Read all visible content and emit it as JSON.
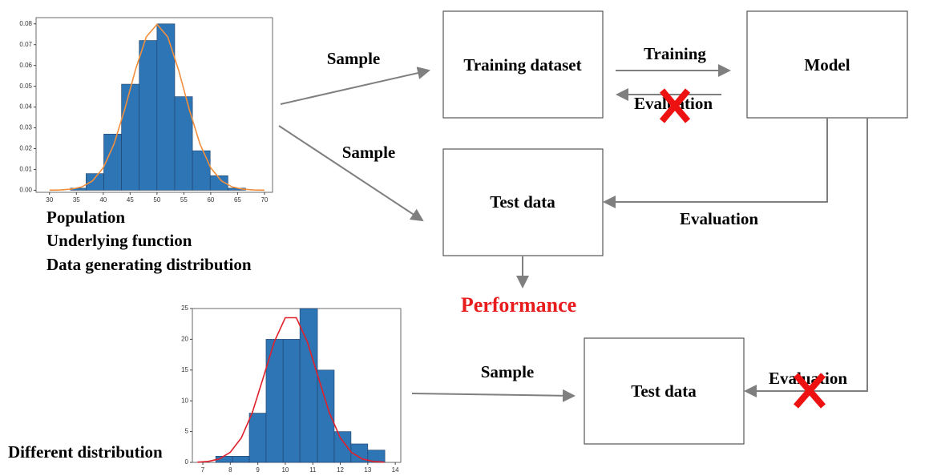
{
  "charts": [
    {
      "type": "histogram",
      "color": "#2e75b6",
      "bins": [
        33.9,
        36.8,
        40.1,
        43.4,
        46.7,
        50.0,
        53.3,
        56.6,
        59.9,
        63.2,
        66.5
      ],
      "values": [
        0.001,
        0.008,
        0.027,
        0.051,
        0.072,
        0.08,
        0.045,
        0.019,
        0.007,
        0.001
      ],
      "xlim": [
        27.5,
        71.5
      ],
      "ylim": [
        -0.001,
        0.083
      ],
      "xticks": [
        30,
        35,
        40,
        45,
        50,
        55,
        60,
        65,
        70
      ],
      "yticks": [
        {
          "value": 0,
          "label": "0.00"
        },
        {
          "value": 0.01,
          "label": "0.01"
        },
        {
          "value": 0.02,
          "label": "0.02"
        },
        {
          "value": 0.03,
          "label": "0.03"
        },
        {
          "value": 0.04,
          "label": "0.04"
        },
        {
          "value": 0.05,
          "label": "0.05"
        },
        {
          "value": 0.06,
          "label": "0.06"
        },
        {
          "value": 0.07,
          "label": "0.07"
        },
        {
          "value": 0.08,
          "label": "0.08"
        }
      ],
      "curve": {
        "color": "#f28e3c",
        "x": [
          30,
          32,
          34,
          36,
          38,
          40,
          42,
          44,
          46,
          48,
          50,
          52,
          54,
          56,
          58,
          60,
          62,
          64,
          66,
          68,
          70
        ],
        "values": [
          3e-05,
          0.0001,
          0.0005,
          0.0016,
          0.0045,
          0.0108,
          0.0222,
          0.0389,
          0.0579,
          0.0737,
          0.0798,
          0.0737,
          0.0579,
          0.0389,
          0.0222,
          0.0108,
          0.0045,
          0.0016,
          0.0005,
          0.0001,
          3e-05
        ]
      }
    },
    {
      "type": "histogram",
      "color": "#2e75b6",
      "bins": [
        7.47,
        8.08,
        8.69,
        9.3,
        9.92,
        10.53,
        11.17,
        11.78,
        12.39,
        13.0,
        13.62
      ],
      "values": [
        1,
        1,
        8,
        20,
        20,
        25,
        15,
        5,
        3,
        2
      ],
      "xlim": [
        6.62,
        14.2
      ],
      "ylim": [
        0,
        25
      ],
      "xticks": [
        7,
        8,
        9,
        10,
        11,
        12,
        13,
        14
      ],
      "yticks": [
        0,
        5,
        10,
        15,
        20,
        25
      ],
      "curve": {
        "color": "#e0202a",
        "x": [
          6.8,
          7.2,
          7.6,
          8.0,
          8.4,
          8.8,
          9.2,
          9.6,
          10.0,
          10.4,
          10.8,
          11.2,
          11.6,
          12.0,
          12.4,
          12.8,
          13.2,
          13.6
        ],
        "values": [
          0.04,
          0.16,
          0.56,
          1.64,
          4.0,
          8.1,
          13.8,
          19.6,
          23.5,
          23.5,
          19.6,
          13.8,
          8.1,
          4.0,
          1.64,
          0.56,
          0.16,
          0.04
        ]
      }
    }
  ],
  "labels": {
    "population": "Population",
    "underlying_function": "Underlying function",
    "data_generating": "Data generating distribution",
    "different_distribution": "Different distribution",
    "performance": "Performance"
  },
  "boxes": [
    "Training dataset",
    "Model",
    "Test data",
    "Test data"
  ],
  "edges": [
    "Sample",
    "Sample",
    "Training",
    "Evaluation",
    "Evaluation",
    "Evaluation",
    "Sample"
  ]
}
